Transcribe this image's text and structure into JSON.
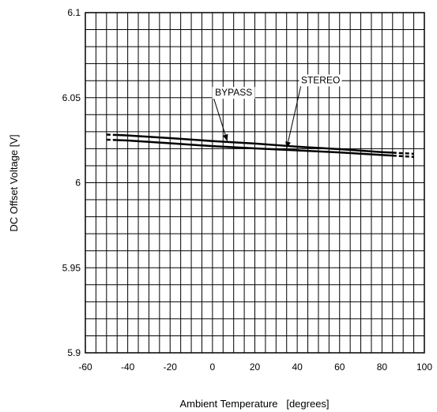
{
  "chart_data": {
    "type": "line",
    "title": "",
    "xlabel": "Ambient Temperature   [degrees]",
    "ylabel": "DC Offset Voltage   [V]",
    "xlim": [
      -60,
      100
    ],
    "ylim": [
      5.9,
      6.1
    ],
    "x_ticks": [
      "-60",
      "-40",
      "-20",
      "0",
      "20",
      "40",
      "60",
      "80",
      "100"
    ],
    "y_ticks": [
      "5.9",
      "5.95",
      "6",
      "6.05",
      "6.1"
    ],
    "grid": true,
    "series": [
      {
        "name": "BYPASS",
        "x": [
          -50,
          -40,
          -20,
          0,
          20,
          40,
          60,
          80,
          95
        ],
        "y": [
          6.0283,
          6.0278,
          6.0262,
          6.0245,
          6.023,
          6.0212,
          6.0197,
          6.018,
          6.017
        ],
        "dashed_x_ranges": [
          [
            -50,
            -45
          ],
          [
            85,
            95
          ]
        ]
      },
      {
        "name": "STEREO",
        "x": [
          -50,
          -40,
          -20,
          0,
          20,
          40,
          60,
          80,
          95
        ],
        "y": [
          6.0253,
          6.0248,
          6.0232,
          6.0215,
          6.0202,
          6.019,
          6.0178,
          6.0163,
          6.0152
        ],
        "dashed_x_ranges": [
          [
            -50,
            -45
          ],
          [
            85,
            95
          ]
        ]
      }
    ],
    "annotations": [
      {
        "text": "BYPASS",
        "series": "BYPASS",
        "label_x": 10,
        "label_y": 6.0512,
        "arrow_to_x": 7,
        "arrow_to_y": 6.0245
      },
      {
        "text": "STEREO",
        "series": "STEREO",
        "label_x": 51,
        "label_y": 6.0585,
        "arrow_to_x": 35,
        "arrow_to_y": 6.0202
      }
    ],
    "line_color": "#000000"
  }
}
